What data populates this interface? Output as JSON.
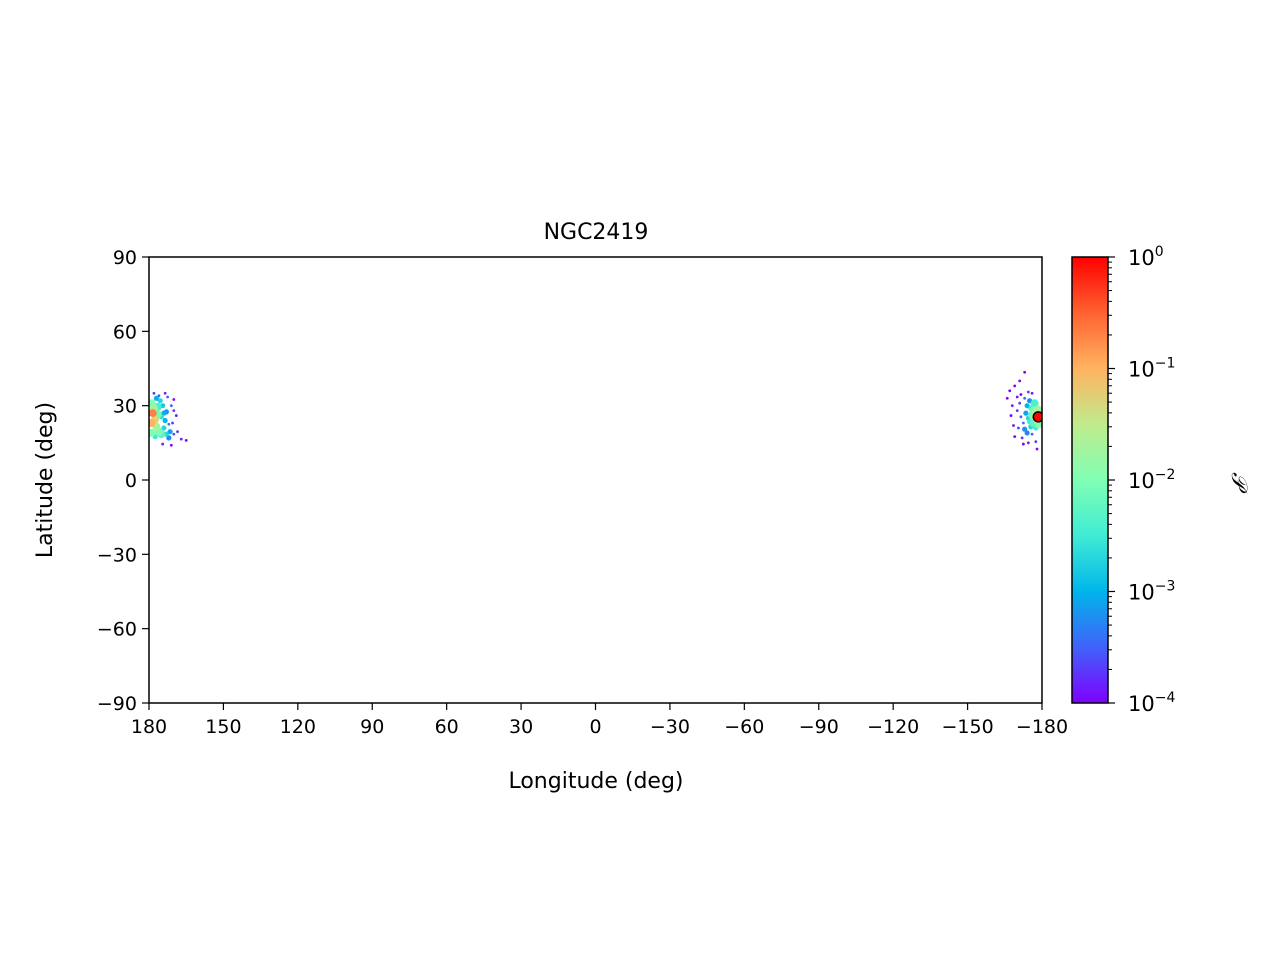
{
  "chart_data": {
    "type": "scatter",
    "title": "NGC2419",
    "xlabel": "Longitude (deg)",
    "ylabel": "Latitude (deg)",
    "xlim": [
      180,
      -180
    ],
    "ylim": [
      -90,
      90
    ],
    "x_ticks": [
      180,
      150,
      120,
      90,
      60,
      30,
      0,
      -30,
      -60,
      -90,
      -120,
      -150,
      -180
    ],
    "x_tick_labels": [
      "180",
      "150",
      "120",
      "90",
      "60",
      "30",
      "0",
      "−30",
      "−60",
      "−90",
      "−120",
      "−150",
      "−180"
    ],
    "y_ticks": [
      90,
      60,
      30,
      0,
      -30,
      -60,
      -90
    ],
    "y_tick_labels": [
      "90",
      "60",
      "30",
      "0",
      "−30",
      "−60",
      "−90"
    ],
    "grid": false,
    "colormap": "rainbow",
    "colorbar": {
      "label": "𝒫",
      "scale": "log",
      "range": [
        0.0001,
        1
      ],
      "major_ticks": [
        0.0001,
        0.001,
        0.01,
        0.1,
        1
      ],
      "tick_bases": [
        "10",
        "10",
        "10",
        "10",
        "10"
      ],
      "tick_exponents": [
        "−4",
        "−3",
        "−2",
        "−1",
        "0"
      ]
    },
    "series": [
      {
        "points": [
          [
            -177,
            25.5,
            0.02
          ],
          [
            -177.5,
            27,
            0.015
          ],
          [
            -178,
            24,
            0.02
          ],
          [
            -176.5,
            28,
            0.008
          ],
          [
            -176,
            26,
            0.006
          ],
          [
            -175.5,
            29,
            0.003
          ],
          [
            -176.5,
            23,
            0.005
          ],
          [
            -175.5,
            21.5,
            0.002
          ],
          [
            -174.5,
            25,
            0.002
          ],
          [
            -177.5,
            21,
            0.003
          ],
          [
            -174,
            30,
            0.001
          ],
          [
            -173.5,
            27,
            0.0008
          ],
          [
            -175,
            32,
            0.0006
          ],
          [
            -173,
            33,
            0.0003
          ],
          [
            -172.5,
            23,
            0.0004
          ],
          [
            -174,
            19,
            0.0005
          ],
          [
            -176,
            18.5,
            0.0003
          ],
          [
            -171,
            31,
            0.0002
          ],
          [
            -170,
            28,
            0.0002
          ],
          [
            -171.5,
            25.5,
            0.0003
          ],
          [
            -170.5,
            21,
            0.0002
          ],
          [
            -172,
            17,
            0.0002
          ],
          [
            -176,
            35,
            0.00015
          ],
          [
            -169,
            38,
            0.0001
          ],
          [
            -173,
            43.5,
            0.0001
          ],
          [
            -167,
            36,
            0.0001
          ],
          [
            -171,
            40,
            0.00012
          ],
          [
            -168,
            30,
            0.00015
          ],
          [
            -167.5,
            26,
            0.0001
          ],
          [
            -168.5,
            22,
            0.00012
          ],
          [
            -169,
            17.5,
            0.0001
          ],
          [
            -177.5,
            15.5,
            0.0002
          ],
          [
            -178,
            12.5,
            0.00012
          ],
          [
            -174.5,
            15,
            0.00015
          ],
          [
            -172.5,
            14.5,
            0.0001
          ],
          [
            -171.5,
            34.5,
            0.0001
          ],
          [
            -177,
            31,
            0.004
          ],
          [
            -178.3,
            28.5,
            0.02
          ],
          [
            -178.5,
            22.5,
            0.01
          ],
          [
            -175,
            23.5,
            0.003
          ],
          [
            -173,
            20.5,
            0.0006
          ],
          [
            -174.5,
            35.5,
            0.0002
          ],
          [
            -166,
            33,
            0.0001
          ],
          [
            -170,
            33.5,
            0.00012
          ],
          [
            -178.5,
            25.5,
            1
          ],
          [
            178.5,
            27,
            0.2
          ],
          [
            179,
            23,
            0.1
          ],
          [
            178,
            29,
            0.02
          ],
          [
            177.5,
            24.5,
            0.05
          ],
          [
            177,
            21.5,
            0.02
          ],
          [
            176,
            19.5,
            0.01
          ],
          [
            175,
            18.5,
            0.005
          ],
          [
            176.5,
            26.5,
            0.008
          ],
          [
            176.5,
            29.5,
            0.004
          ],
          [
            175.5,
            32,
            0.002
          ],
          [
            177,
            33,
            0.001
          ],
          [
            174.5,
            30,
            0.0015
          ],
          [
            174,
            27,
            0.001
          ],
          [
            173.5,
            24,
            0.001
          ],
          [
            174,
            21,
            0.002
          ],
          [
            173,
            18.5,
            0.002
          ],
          [
            172,
            17,
            0.0006
          ],
          [
            171.5,
            19.5,
            0.0008
          ],
          [
            172,
            22.5,
            0.0004
          ],
          [
            172.5,
            33.5,
            0.0003
          ],
          [
            171,
            30,
            0.0003
          ],
          [
            170,
            28,
            0.0002
          ],
          [
            170.5,
            23,
            0.0002
          ],
          [
            169,
            26,
            0.00015
          ],
          [
            170,
            18.5,
            0.00025
          ],
          [
            168.5,
            19.5,
            0.0002
          ],
          [
            167,
            16.5,
            0.00015
          ],
          [
            165,
            16,
            0.0001
          ],
          [
            174.5,
            14.5,
            0.00015
          ],
          [
            171,
            14,
            0.0001
          ],
          [
            176,
            34,
            0.0003
          ],
          [
            178,
            35,
            0.0002
          ],
          [
            173.5,
            35,
            0.00015
          ],
          [
            170,
            32.5,
            0.00012
          ],
          [
            179,
            31,
            0.01
          ],
          [
            175,
            25.5,
            0.0025
          ],
          [
            177.5,
            17.5,
            0.003
          ],
          [
            179,
            19,
            0.01
          ],
          [
            173,
            27.5,
            0.0006
          ]
        ]
      }
    ]
  }
}
